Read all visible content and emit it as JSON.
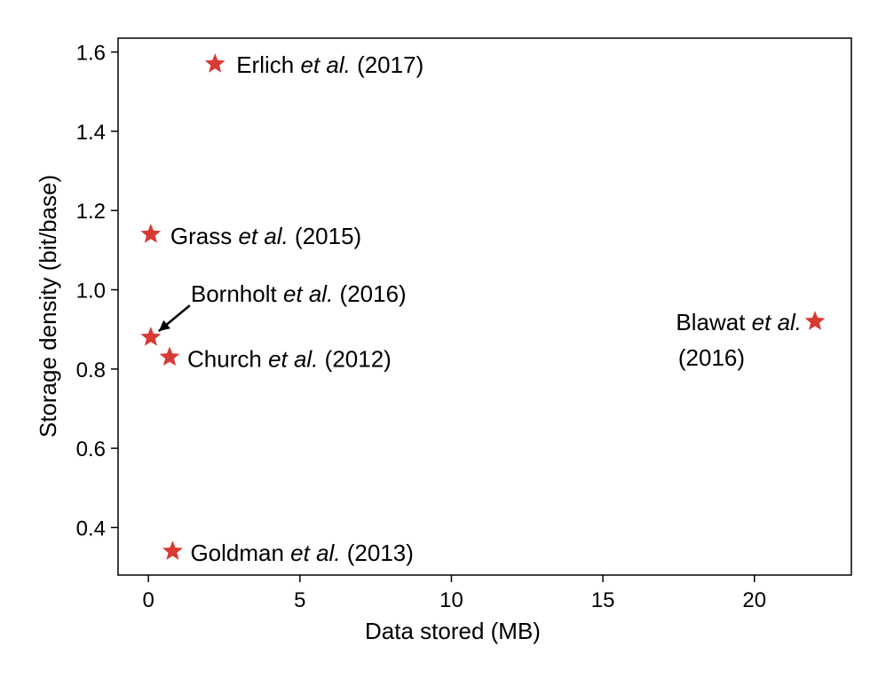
{
  "chart_data": {
    "type": "scatter",
    "title": "",
    "xlabel": "Data stored (MB)",
    "ylabel": "Storage density (bit/base)",
    "xlim": [
      -1,
      23.2
    ],
    "ylim": [
      0.28,
      1.635
    ],
    "xticks": [
      0,
      5,
      10,
      15,
      20
    ],
    "yticks": [
      0.4,
      0.6,
      0.8,
      1.0,
      1.2,
      1.4,
      1.6
    ],
    "ytick_labels": [
      "0.4",
      "0.6",
      "0.8",
      "1.0",
      "1.2",
      "1.4",
      "1.6"
    ],
    "grid": false,
    "marker": "star",
    "marker_color": "#d83a34",
    "points": [
      {
        "author": "Erlich",
        "etal": "et al.",
        "year": "(2017)",
        "x": 2.2,
        "y": 1.57
      },
      {
        "author": "Grass",
        "etal": "et al.",
        "year": "(2015)",
        "x": 0.08,
        "y": 1.14
      },
      {
        "author": "Bornholt",
        "etal": "et al.",
        "year": "(2016)",
        "x": 0.08,
        "y": 0.88
      },
      {
        "author": "Church",
        "etal": "et al.",
        "year": "(2012)",
        "x": 0.7,
        "y": 0.83
      },
      {
        "author": "Goldman",
        "etal": "et al.",
        "year": "(2013)",
        "x": 0.8,
        "y": 0.34
      },
      {
        "author": "Blawat",
        "etal": "et al.",
        "year": "(2016)",
        "x": 22.0,
        "y": 0.92
      }
    ]
  }
}
